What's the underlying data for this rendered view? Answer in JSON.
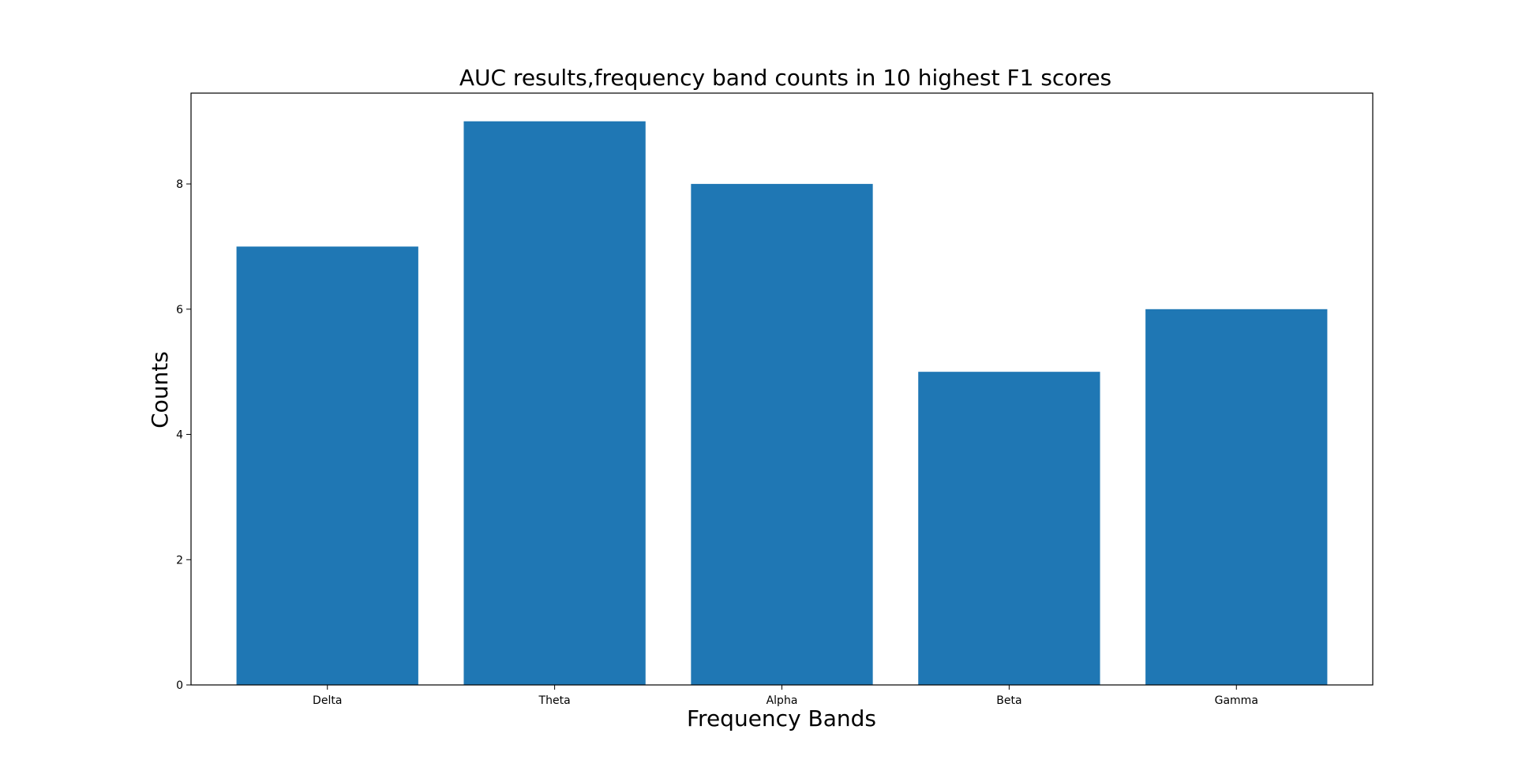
{
  "chart_data": {
    "type": "bar",
    "title": "AUC results,frequency band counts in 10 highest F1 scores",
    "xlabel": "Frequency Bands",
    "ylabel": "Counts",
    "categories": [
      "Delta",
      "Theta",
      "Alpha",
      "Beta",
      "Gamma"
    ],
    "values": [
      7,
      9,
      8,
      5,
      6
    ],
    "ylim": [
      0,
      9.45
    ],
    "yticks": [
      0,
      2,
      4,
      6,
      8
    ],
    "grid": false,
    "legend": "none",
    "bar_color": "#1f77b4"
  }
}
